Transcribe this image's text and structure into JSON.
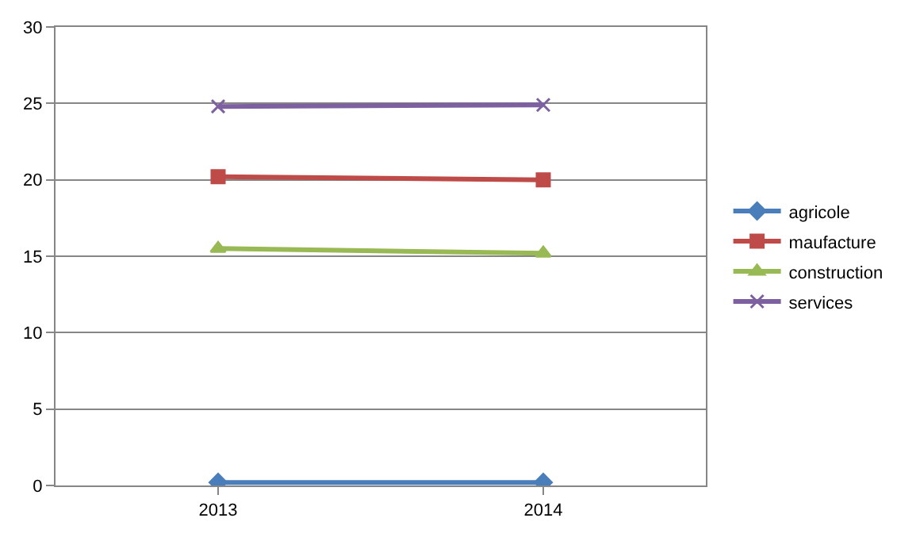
{
  "chart_data": {
    "type": "line",
    "categories": [
      "2013",
      "2014"
    ],
    "series": [
      {
        "name": "agricole",
        "color": "#4a7ebb",
        "marker": "diamond",
        "values": [
          0.2,
          0.2
        ]
      },
      {
        "name": "maufacture",
        "color": "#be4b48",
        "marker": "square",
        "values": [
          20.2,
          20.0
        ]
      },
      {
        "name": "construction",
        "color": "#98b954",
        "marker": "triangle",
        "values": [
          15.5,
          15.2
        ]
      },
      {
        "name": "services",
        "color": "#7d60a0",
        "marker": "cross",
        "values": [
          24.8,
          24.9
        ]
      }
    ],
    "ylim": [
      0,
      30
    ],
    "yticks": [
      0,
      5,
      10,
      15,
      20,
      25,
      30
    ],
    "grid": "y",
    "legend": "right",
    "line_style": "solid"
  }
}
